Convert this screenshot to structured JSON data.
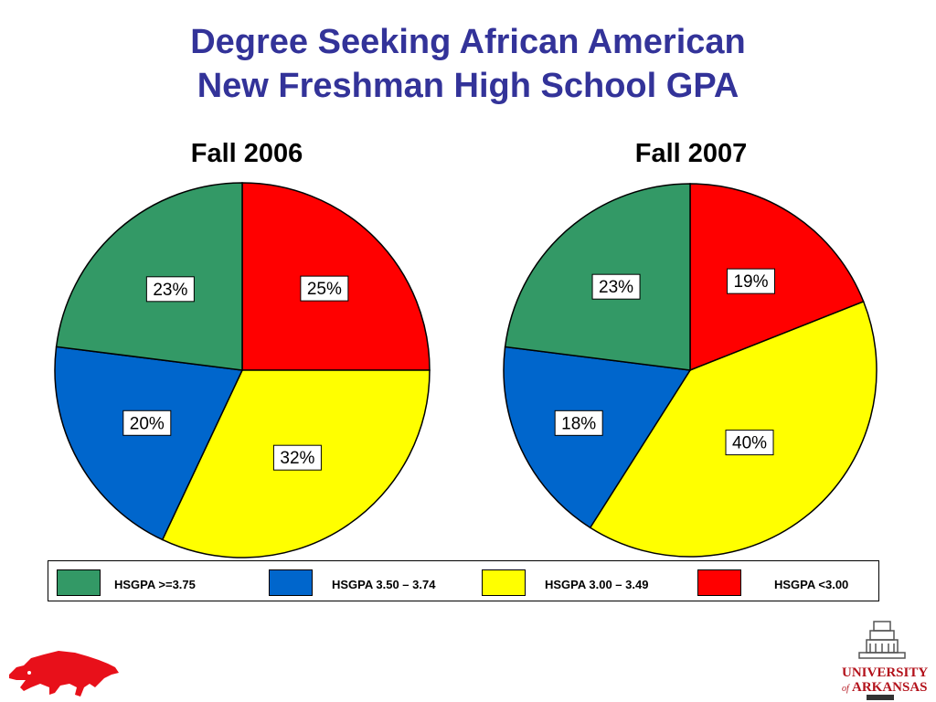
{
  "title": {
    "line1": "Degree Seeking African American",
    "line2": "New Freshman High School GPA"
  },
  "legend": [
    {
      "label": "HSGPA >=3.75",
      "color": "#339966"
    },
    {
      "label": "HSGPA 3.50 – 3.74",
      "color": "#0066CC"
    },
    {
      "label": "HSGPA 3.00 – 3.49",
      "color": "#FFFF00"
    },
    {
      "label": "HSGPA <3.00",
      "color": "#FF0000"
    }
  ],
  "chart_data": [
    {
      "type": "pie",
      "title": "Fall 2006",
      "categories": [
        "HSGPA <3.00",
        "HSGPA 3.00 – 3.49",
        "HSGPA 3.50 – 3.74",
        "HSGPA >=3.75"
      ],
      "values": [
        25,
        32,
        20,
        23
      ],
      "labels": [
        "25%",
        "32%",
        "20%",
        "23%"
      ],
      "colors": [
        "#FF0000",
        "#FFFF00",
        "#0066CC",
        "#339966"
      ]
    },
    {
      "type": "pie",
      "title": "Fall 2007",
      "categories": [
        "HSGPA <3.00",
        "HSGPA 3.00 – 3.49",
        "HSGPA 3.50 – 3.74",
        "HSGPA >=3.75"
      ],
      "values": [
        19,
        40,
        18,
        23
      ],
      "labels": [
        "19%",
        "40%",
        "18%",
        "23%"
      ],
      "colors": [
        "#FF0000",
        "#FFFF00",
        "#0066CC",
        "#339966"
      ]
    }
  ],
  "logo": {
    "text_line1": "UNIVERSITY",
    "text_line2": "ARKANSAS",
    "text_of": "of"
  }
}
